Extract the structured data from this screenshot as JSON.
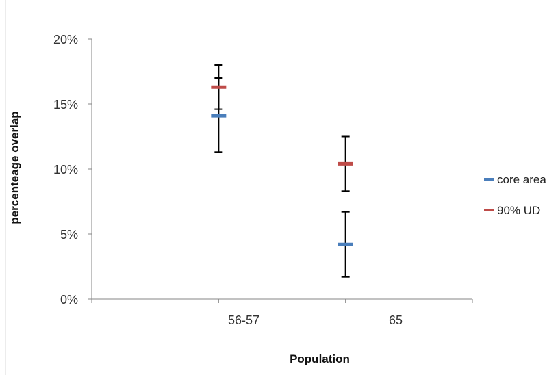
{
  "chart_data": {
    "type": "scatter",
    "subtype": "error-bar",
    "title": "",
    "xlabel": "Population",
    "ylabel": "percenteage overlap",
    "categories": [
      "56-57",
      "65"
    ],
    "ylim": [
      0,
      20
    ],
    "yticks": [
      "0%",
      "5%",
      "10%",
      "15%",
      "20%"
    ],
    "grid": false,
    "legend_position": "right",
    "series": [
      {
        "name": "core area",
        "color": "#4a7ebb",
        "values": [
          14.1,
          4.2
        ],
        "err_low": [
          11.3,
          1.7
        ],
        "err_high": [
          17.0,
          6.7
        ]
      },
      {
        "name": "90% UD",
        "color": "#be4b48",
        "values": [
          16.3,
          10.4
        ],
        "err_low": [
          14.6,
          8.3
        ],
        "err_high": [
          18.0,
          12.5
        ]
      }
    ]
  }
}
